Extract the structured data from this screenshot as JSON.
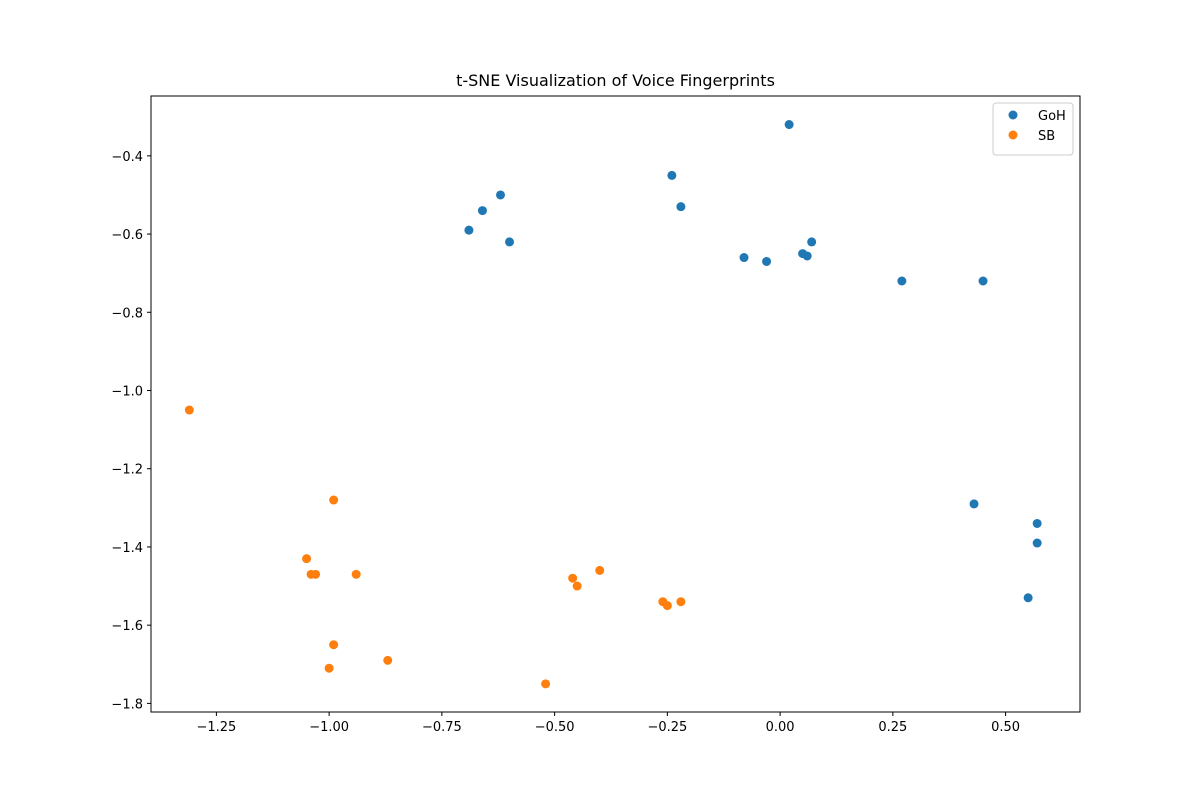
{
  "chart_data": {
    "type": "scatter",
    "title": "t-SNE Visualization of Voice Fingerprints",
    "xlabel": "",
    "ylabel": "",
    "xlim": [
      -1.395,
      0.665
    ],
    "ylim": [
      -1.822,
      -0.247
    ],
    "x_ticks": [
      -1.25,
      -1.0,
      -0.75,
      -0.5,
      -0.25,
      0.0,
      0.25,
      0.5
    ],
    "x_tick_labels": [
      "−1.25",
      "−1.00",
      "−0.75",
      "−0.50",
      "−0.25",
      "0.00",
      "0.25",
      "0.50"
    ],
    "y_ticks": [
      -0.4,
      -0.6,
      -0.8,
      -1.0,
      -1.2,
      -1.4,
      -1.6,
      -1.8
    ],
    "y_tick_labels": [
      "−0.4",
      "−0.6",
      "−0.8",
      "−1.0",
      "−1.2",
      "−1.4",
      "−1.6",
      "−1.8"
    ],
    "grid": false,
    "legend_position": "upper-right",
    "series": [
      {
        "name": "GoH",
        "color": "#1f77b4",
        "points": [
          [
            0.02,
            -0.32
          ],
          [
            -0.24,
            -0.45
          ],
          [
            -0.62,
            -0.5
          ],
          [
            -0.66,
            -0.54
          ],
          [
            -0.22,
            -0.53
          ],
          [
            -0.69,
            -0.59
          ],
          [
            -0.6,
            -0.62
          ],
          [
            -0.08,
            -0.66
          ],
          [
            -0.03,
            -0.67
          ],
          [
            0.05,
            -0.65
          ],
          [
            0.06,
            -0.656
          ],
          [
            0.07,
            -0.62
          ],
          [
            0.27,
            -0.72
          ],
          [
            0.45,
            -0.72
          ],
          [
            0.43,
            -1.29
          ],
          [
            0.57,
            -1.34
          ],
          [
            0.57,
            -1.39
          ],
          [
            0.55,
            -1.53
          ]
        ]
      },
      {
        "name": "SB",
        "color": "#ff7f0e",
        "points": [
          [
            -1.31,
            -1.05
          ],
          [
            -0.99,
            -1.28
          ],
          [
            -1.05,
            -1.43
          ],
          [
            -1.04,
            -1.47
          ],
          [
            -1.03,
            -1.47
          ],
          [
            -0.94,
            -1.47
          ],
          [
            -0.99,
            -1.65
          ],
          [
            -1.0,
            -1.71
          ],
          [
            -0.87,
            -1.69
          ],
          [
            -0.46,
            -1.48
          ],
          [
            -0.45,
            -1.5
          ],
          [
            -0.4,
            -1.46
          ],
          [
            -0.26,
            -1.54
          ],
          [
            -0.25,
            -1.55
          ],
          [
            -0.22,
            -1.54
          ],
          [
            -0.52,
            -1.75
          ]
        ]
      }
    ]
  }
}
